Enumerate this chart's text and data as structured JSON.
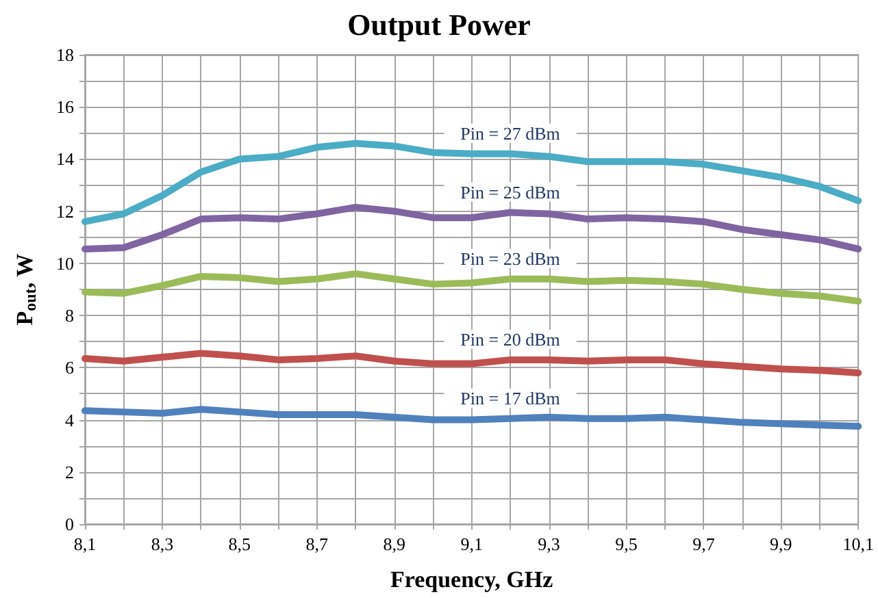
{
  "chart_data": {
    "type": "line",
    "title": "Output Power",
    "xlabel": "Frequency, GHz",
    "ylabel": "P$_{out}$, W",
    "x": [
      8.1,
      8.2,
      8.3,
      8.4,
      8.5,
      8.6,
      8.7,
      8.8,
      8.9,
      9.0,
      9.1,
      9.2,
      9.3,
      9.4,
      9.5,
      9.6,
      9.7,
      9.8,
      9.9,
      10.0,
      10.1
    ],
    "series": [
      {
        "name": "Pin = 27 dBm",
        "color": "#4bacc6",
        "values": [
          11.6,
          11.9,
          12.6,
          13.5,
          14.0,
          14.1,
          14.45,
          14.6,
          14.5,
          14.25,
          14.2,
          14.2,
          14.1,
          13.9,
          13.9,
          13.9,
          13.8,
          13.55,
          13.3,
          12.95,
          12.4
        ]
      },
      {
        "name": "Pin = 25 dBm",
        "color": "#8064a2",
        "values": [
          10.55,
          10.6,
          11.1,
          11.7,
          11.75,
          11.7,
          11.9,
          12.15,
          12.0,
          11.75,
          11.75,
          11.95,
          11.9,
          11.7,
          11.75,
          11.7,
          11.6,
          11.3,
          11.1,
          10.9,
          10.55
        ]
      },
      {
        "name": "Pin = 23 dBm",
        "color": "#9bbb59",
        "values": [
          8.9,
          8.85,
          9.15,
          9.5,
          9.45,
          9.3,
          9.4,
          9.6,
          9.4,
          9.2,
          9.25,
          9.4,
          9.4,
          9.3,
          9.35,
          9.3,
          9.2,
          9.0,
          8.85,
          8.75,
          8.55
        ]
      },
      {
        "name": "Pin = 20 dBm",
        "color": "#c0504d",
        "values": [
          6.35,
          6.25,
          6.4,
          6.55,
          6.45,
          6.3,
          6.35,
          6.45,
          6.25,
          6.15,
          6.15,
          6.3,
          6.3,
          6.25,
          6.3,
          6.3,
          6.15,
          6.05,
          5.95,
          5.9,
          5.8
        ]
      },
      {
        "name": "Pin = 17 dBm",
        "color": "#4f81bd",
        "values": [
          4.35,
          4.3,
          4.25,
          4.4,
          4.3,
          4.2,
          4.2,
          4.2,
          4.1,
          4.0,
          4.0,
          4.05,
          4.1,
          4.05,
          4.05,
          4.1,
          4.0,
          3.9,
          3.85,
          3.8,
          3.75
        ]
      }
    ],
    "xlim": [
      8.1,
      10.1
    ],
    "xticks": [
      {
        "value": 8.1,
        "label": "8,1"
      },
      {
        "value": 8.2,
        "label": null
      },
      {
        "value": 8.3,
        "label": "8,3"
      },
      {
        "value": 8.4,
        "label": null
      },
      {
        "value": 8.5,
        "label": "8,5"
      },
      {
        "value": 8.6,
        "label": null
      },
      {
        "value": 8.7,
        "label": "8,7"
      },
      {
        "value": 8.8,
        "label": null
      },
      {
        "value": 8.9,
        "label": "8,9"
      },
      {
        "value": 9.0,
        "label": null
      },
      {
        "value": 9.1,
        "label": "9,1"
      },
      {
        "value": 9.2,
        "label": null
      },
      {
        "value": 9.3,
        "label": "9,3"
      },
      {
        "value": 9.4,
        "label": null
      },
      {
        "value": 9.5,
        "label": "9,5"
      },
      {
        "value": 9.6,
        "label": null
      },
      {
        "value": 9.7,
        "label": "9,7"
      },
      {
        "value": 9.8,
        "label": null
      },
      {
        "value": 9.9,
        "label": "9,9"
      },
      {
        "value": 10.0,
        "label": null
      },
      {
        "value": 10.1,
        "label": "10,1"
      }
    ],
    "ylim": [
      0,
      18
    ],
    "yticks": [
      0,
      {
        "value": 1,
        "label": null
      },
      2,
      {
        "value": 3,
        "label": null
      },
      4,
      {
        "value": 5,
        "label": null
      },
      6,
      {
        "value": 7,
        "label": null
      },
      8,
      {
        "value": 9,
        "label": null
      },
      10,
      {
        "value": 11,
        "label": null
      },
      12,
      {
        "value": 13,
        "label": null
      },
      14,
      {
        "value": 15,
        "label": null
      },
      16,
      {
        "value": 17,
        "label": null
      },
      18
    ],
    "grid": true,
    "marker": "none",
    "line_style": "solid"
  }
}
